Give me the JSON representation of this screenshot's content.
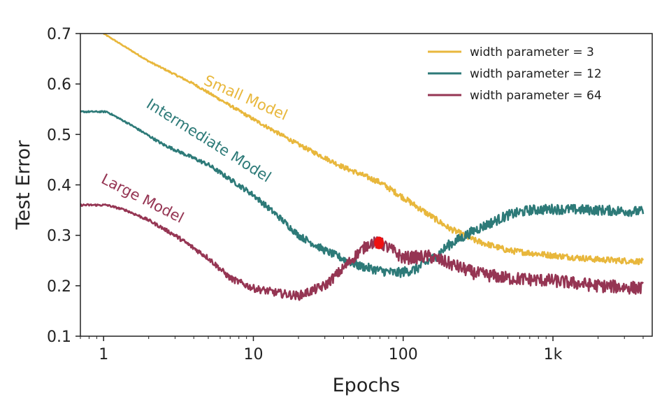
{
  "chart_data": {
    "type": "line",
    "xlabel": "Epochs",
    "ylabel": "Test Error",
    "xscale": "log",
    "xlim": [
      0.7,
      4600
    ],
    "ylim": [
      0.1,
      0.7
    ],
    "xticks": [
      {
        "value": 1,
        "label": "1"
      },
      {
        "value": 10,
        "label": "10"
      },
      {
        "value": 100,
        "label": "100"
      },
      {
        "value": 1000,
        "label": "1k"
      }
    ],
    "yticks": [
      {
        "value": 0.1,
        "label": "0.1"
      },
      {
        "value": 0.2,
        "label": "0.2"
      },
      {
        "value": 0.3,
        "label": "0.3"
      },
      {
        "value": 0.4,
        "label": "0.4"
      },
      {
        "value": 0.5,
        "label": "0.5"
      },
      {
        "value": 0.6,
        "label": "0.6"
      },
      {
        "value": 0.7,
        "label": "0.7"
      }
    ],
    "legend_position": "top-right",
    "series": [
      {
        "name": "width parameter = 3",
        "color": "#e8b73c",
        "x": [
          1,
          2,
          4,
          10,
          20,
          40,
          70,
          100,
          150,
          200,
          300,
          500,
          1000,
          2000,
          4000
        ],
        "y": [
          0.7,
          0.645,
          0.6,
          0.53,
          0.48,
          0.435,
          0.405,
          0.375,
          0.34,
          0.315,
          0.29,
          0.27,
          0.26,
          0.252,
          0.248
        ],
        "noise": 0.006
      },
      {
        "name": "width parameter = 12",
        "color": "#2d7a78",
        "x": [
          0.7,
          1.05,
          1.5,
          2.5,
          5,
          10,
          15,
          20,
          30,
          50,
          70,
          90,
          120,
          160,
          200,
          300,
          500,
          700,
          1000,
          2000,
          4000
        ],
        "y": [
          0.545,
          0.545,
          0.52,
          0.48,
          0.44,
          0.38,
          0.335,
          0.3,
          0.27,
          0.24,
          0.23,
          0.225,
          0.232,
          0.255,
          0.28,
          0.31,
          0.34,
          0.35,
          0.352,
          0.35,
          0.347
        ],
        "noise": 0.01
      },
      {
        "name": "width parameter = 64",
        "color": "#953553",
        "x": [
          0.7,
          1.05,
          1.4,
          2,
          3,
          5,
          7,
          10,
          15,
          20,
          30,
          40,
          50,
          60,
          70,
          80,
          100,
          150,
          200,
          300,
          500,
          1000,
          2000,
          4000
        ],
        "y": [
          0.36,
          0.36,
          0.35,
          0.33,
          0.3,
          0.255,
          0.215,
          0.195,
          0.185,
          0.18,
          0.2,
          0.235,
          0.265,
          0.285,
          0.285,
          0.275,
          0.255,
          0.258,
          0.245,
          0.225,
          0.215,
          0.21,
          0.2,
          0.195
        ],
        "noise": 0.013
      }
    ],
    "annotations": [
      {
        "text": "Small Model",
        "x": 4.6,
        "y": 0.6,
        "rotate": 24,
        "color": "#e8b73c"
      },
      {
        "text": "Intermediate Model",
        "x": 1.9,
        "y": 0.555,
        "rotate": 32,
        "color": "#2d7a78"
      },
      {
        "text": "Large Model",
        "x": 0.95,
        "y": 0.405,
        "rotate": 27,
        "color": "#953553"
      }
    ],
    "marker": {
      "x": 69,
      "y": 0.285,
      "color": "#ee1111"
    }
  }
}
